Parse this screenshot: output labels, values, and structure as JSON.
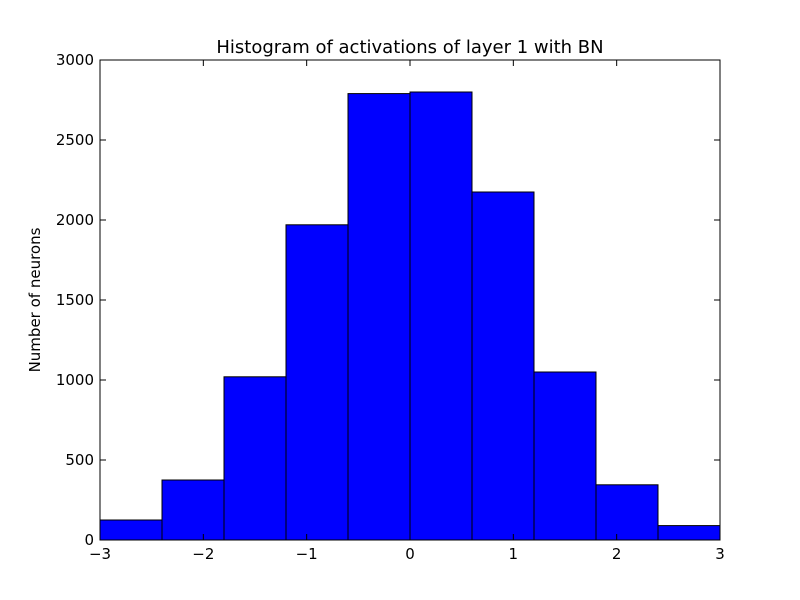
{
  "chart_data": {
    "type": "bar",
    "title": "Histogram of activations of layer 1  with BN",
    "xlabel": "",
    "ylabel": "Number of neurons",
    "bin_edges": [
      -3,
      -2.4,
      -1.8,
      -1.2,
      -0.6,
      0,
      0.6,
      1.2,
      1.8,
      2.4,
      3
    ],
    "values": [
      125,
      375,
      1020,
      1970,
      2790,
      2800,
      2175,
      1050,
      345,
      90
    ],
    "xlim": [
      -3,
      3
    ],
    "ylim": [
      0,
      3000
    ],
    "xticks": [
      -3,
      -2,
      -1,
      0,
      1,
      2,
      3
    ],
    "xtick_labels": [
      "−3",
      "−2",
      "−1",
      "0",
      "1",
      "2",
      "3"
    ],
    "yticks": [
      0,
      500,
      1000,
      1500,
      2000,
      2500,
      3000
    ],
    "ytick_labels": [
      "0",
      "500",
      "1000",
      "1500",
      "2000",
      "2500",
      "3000"
    ],
    "grid": false,
    "bar_color": "#0000ff",
    "edge_color": "#000000"
  }
}
